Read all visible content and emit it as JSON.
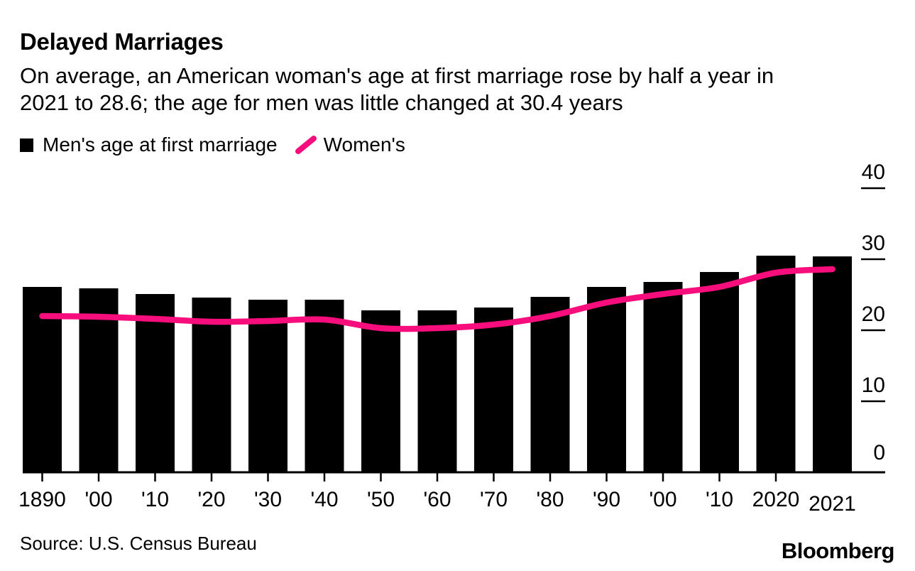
{
  "header": {
    "title": "Delayed Marriages",
    "subtitle_lines": [
      "On average, an American woman's age at first marriage rose by half a year in",
      "2021 to 28.6; the age for men was little changed at 30.4 years"
    ]
  },
  "legend": {
    "men_label": "Men's age at first marriage",
    "women_label": "Women's"
  },
  "footer": {
    "source": "Source: U.S. Census Bureau",
    "brand": "Bloomberg"
  },
  "colors": {
    "bar": "#000000",
    "line": "#F70D7C",
    "axis": "#000000",
    "text": "#000000",
    "background": "#FFFFFF"
  },
  "chart_data": {
    "type": "bar",
    "title": "Delayed Marriages",
    "categories": [
      1890,
      1900,
      1910,
      1920,
      1930,
      1940,
      1950,
      1960,
      1970,
      1980,
      1990,
      2000,
      2010,
      2020,
      2021
    ],
    "x_tick_labels": [
      "1890",
      "'00",
      "'10",
      "'20",
      "'30",
      "'40",
      "'50",
      "'60",
      "'70",
      "'80",
      "'90",
      "'00",
      "'10",
      "2020",
      "2021"
    ],
    "series": [
      {
        "name": "Men's age at first marriage",
        "type": "bar",
        "values": [
          26.1,
          25.9,
          25.1,
          24.6,
          24.3,
          24.3,
          22.8,
          22.8,
          23.2,
          24.7,
          26.1,
          26.8,
          28.2,
          30.5,
          30.4
        ]
      },
      {
        "name": "Women's",
        "type": "line",
        "values": [
          22.0,
          21.9,
          21.6,
          21.2,
          21.3,
          21.5,
          20.3,
          20.3,
          20.8,
          22.0,
          23.9,
          25.1,
          26.1,
          28.1,
          28.6
        ]
      }
    ],
    "xlabel": "",
    "ylabel": "",
    "ylim": [
      0,
      40
    ],
    "yticks": [
      0,
      10,
      20,
      30,
      40
    ],
    "grid": false,
    "legend_position": "top-left",
    "y_axis_side": "right"
  }
}
